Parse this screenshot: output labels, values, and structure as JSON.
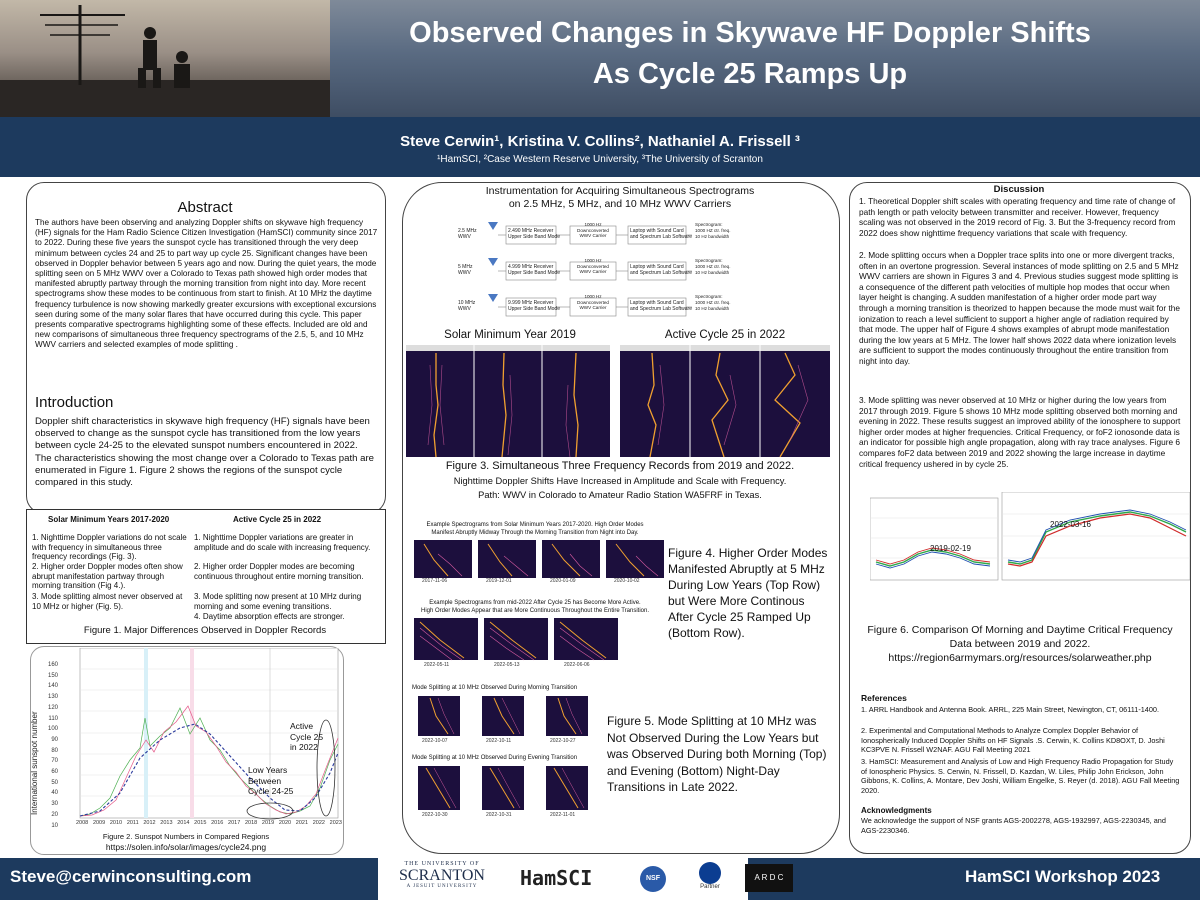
{
  "header": {
    "title_line1": "Observed Changes in Skywave HF Doppler Shifts",
    "title_line2": "As Cycle 25 Ramps Up",
    "authors": "Steve Cerwin¹, Kristina V. Collins², Nathaniel A. Frissell ³",
    "affiliations": "¹HamSCI, ²Case Western Reserve University, ³The University of Scranton"
  },
  "left": {
    "abstract_heading": "Abstract",
    "abstract_text": "The authors have been observing and analyzing Doppler shifts on skywave high frequency (HF) signals for the Ham Radio Science Citizen Investigation (HamSCI) community since 2017 to 2022. During these five years the sunspot cycle has transitioned through the very deep minimum between cycles 24 and 25 to part way up cycle 25. Significant changes have been observed in Doppler behavior between 5 years ago and now. During the quiet years, the mode splitting seen on 5 MHz WWV over a Colorado to Texas path showed high order modes that manifested abruptly partway through the morning transition from night into day. More recent spectrograms show these modes to be continuous from start to finish. At 10 MHz the daytime frequency turbulence is now showing markedly greater excursions with exceptional excursions seen during some of the many solar flares that have occurred during this cycle. This paper presents comparative spectrograms highlighting some of these effects. Included are old and new comparisons of simultaneous three frequency spectrograms of the 2.5, 5, and 10 MHz WWV carriers and selected examples of mode splitting .",
    "intro_heading": "Introduction",
    "intro_text": "Doppler shift characteristics in skywave high frequency (HF) signals have been observed to change as the sunspot cycle has transitioned from the low years between cycle 24-25 to the elevated sunspot numbers encountered in 2022.  The characteristics showing the most change over a Colorado to Texas path are enumerated in Figure 1.  Figure 2 shows the regions of the sunspot cycle compared in this study."
  },
  "fig1": {
    "col1_head": "Solar Minimum Years 2017-2020",
    "col2_head": "Active Cycle 25 in 2022",
    "col1_items": [
      "1. Nighttime Doppler variations do not scale with frequency in simultaneous three frequency recordings (Fig. 3).",
      "2. Higher order Doppler modes often show abrupt manifestation partway through morning transition (Fig 4.).",
      "3. Mode splitting almost never observed at 10 MHz or higher (Fig. 5)."
    ],
    "col2_items": [
      "1. Nighttime Doppler variations are greater in amplitude  and do scale with increasing frequency.",
      "2. Higher order Doppler modes are becoming continuous throughout entire morning transition.",
      "3. Mode splitting now present at 10 MHz during morning and some evening transitions.",
      "4. Daytime absorption effects are stronger."
    ],
    "caption": "Figure 1. Major Differences Observed in Doppler Records"
  },
  "fig2": {
    "caption": "Figure 2. Sunspot Numbers in Compared Regions",
    "url": "https://solen.info/solar/images/cycle24.png",
    "ylabel": "International sunspot number",
    "yticks": [
      "160",
      "150",
      "140",
      "130",
      "120",
      "110",
      "100",
      "90",
      "80",
      "70",
      "60",
      "50",
      "40",
      "30",
      "20",
      "10",
      "0"
    ],
    "xticks": [
      "2008",
      "2009",
      "2010",
      "2011",
      "2012",
      "2013",
      "2014",
      "2015",
      "2016",
      "2017",
      "2018",
      "2019",
      "2020",
      "2021",
      "2022",
      "2023"
    ],
    "annot_active": "Active\nCycle 25\nin 2022",
    "annot_low": "Low Years\nBetween\nCycle 24-25"
  },
  "middle": {
    "instr_title": "Instrumentation for Acquiring Simultaneous Spectrograms\non 2.5 MHz, 5 MHz, and 10 MHz WWV Carriers",
    "instr_rows": [
      {
        "freq": "2.5 MHz\nWWV",
        "rx": "2.490 MHz Receiver\nUpper Side Band Mode",
        "dc": "1000 Hz\nDownconverted\nWWV Carrier",
        "pc": "Laptop with Sound Card\nand Spectrum Lab Software",
        "sp": "Spectrogram:\n1000 HZ ctr. freq.\n10 Hz bandwidth"
      },
      {
        "freq": "5 MHz\nWWV",
        "rx": "4.999 MHz Receiver\nUpper Side Band Mode",
        "dc": "1000 Hz\nDownconverted\nWWV Carrier",
        "pc": "Laptop with Sound Card\nand Spectrum Lab Software",
        "sp": "Spectrogram:\n1000 HZ ctr. freq.\n10 Hz bandwidth"
      },
      {
        "freq": "10 MHz\nWWV",
        "rx": "9.999 MHz Receiver\nUpper Side Band Mode",
        "dc": "1000 Hz\nDownconverted\nWWV Carrier",
        "pc": "Laptop with Sound Card\nand Spectrum Lab Software",
        "sp": "Spectrogram:\n1000 HZ ctr. freq.\n10 Hz bandwidth"
      }
    ],
    "solarmin_title": "Solar Minimum Year 2019",
    "active_title": "Active Cycle 25 in 2022",
    "fig3_caption": "Figure 3. Simultaneous Three Frequency Records from 2019 and 2022.",
    "fig3_sub1": "Nighttime Doppler Shifts Have Increased in Amplitude and Scale with Frequency.",
    "fig3_sub2": "Path: WWV in Colorado to Amateur Radio Station WA5FRF in Texas.",
    "fig4_top_label": "Example Spectrograms from Solar Minimum Years 2017-2020. High Order Modes\nManifest Abruptly Midway Through the Morning Transition from Night into Day.",
    "fig4_top_dates": [
      "2017-11-06",
      "2019-12-01",
      "2020-01-09",
      "2020-10-02"
    ],
    "fig4_bot_label": "Example Spectrograms from mid-2022 After Cycle 25 has Become More Active.\nHigh Order Modes Appear that are More Continuous Throughout the Entire Transition.",
    "fig4_bot_dates": [
      "2022-05-11",
      "2022-05-13",
      "2022-06-06"
    ],
    "fig4_caption": "Figure 4. Higher Order Modes Manifested Abruptly at 5 MHz During Low Years (Top Row) but Were More Continous After Cycle 25 Ramped Up (Bottom Row).",
    "fig5_top_label": "Mode Splitting at 10 MHz Observed During Morning Transition",
    "fig5_top_dates": [
      "2022-10-07",
      "2022-10-11",
      "2022-10-27"
    ],
    "fig5_bot_label": "Mode Splitting at 10 MHz Observed During Evening Transition",
    "fig5_bot_dates": [
      "2022-10-30",
      "2022-10-31",
      "2022-11-01"
    ],
    "fig5_caption": "Figure 5. Mode Splitting at 10 MHz was Not Observed During the Low Years but was Observed During both Morning (Top) and Evening (Bottom) Night-Day Transitions  in Late 2022."
  },
  "right": {
    "heading": "Discussion",
    "p1": "1. Theoretical Doppler shift scales with operating frequency and time rate of change of path length or path velocity between transmitter and receiver.  However,  frequency scaling was not observed in the 2019 record of Fig. 3.  But the 3-frequency record from 2022 does show nighttime frequency variations that scale with frequency.",
    "p2": "2. Mode splitting occurs when a Doppler trace splits into one or more divergent tracks, often in an overtone progression. Several instances of mode splitting on 2.5 and 5 MHz WWV carriers are shown in Figures 3 and 4. Previous studies suggest mode splitting is a consequence of the different path velocities of multiple hop modes that occur when layer height is changing. A sudden manifestation of a higher order mode part way through a morning transition is theorized to happen because the mode must wait for the ionization to reach a level sufficient to support a higher angle of radiation required by that mode. The upper half of Figure 4 shows examples of abrupt mode manifestation during the low years at 5 MHz. The lower half shows 2022 data where ionization levels are sufficient to support the modes continuously throughout the entire transition from night into day.",
    "p3": "3. Mode splitting was never observed at 10 MHz or higher during the low years from 2017 through 2019. Figure 5 shows 10 MHz mode splitting observed both morning and evening in 2022. These results suggest an improved ability of the ionosphere to support higher order modes at higher frequencies. Critical Frequency, or foF2 ionosonde data is an indicator for possible high angle propagation, along with ray trace analyses. Figure 6 compares foF2 data between 2019 and 2022 showing the large increase in daytime critical frequency ushered in by cycle 25.",
    "fig6_date1": "2019-02-19",
    "fig6_date2": "2022-03-16",
    "fig6_caption": "Figure 6. Comparison Of Morning and Daytime Critical Frequency Data between 2019 and 2022.",
    "fig6_url": "https://region6armymars.org/resources/solarweather.php",
    "ref_heading": "References",
    "ref1": "1. ARRL Handbook and Antenna Book. ARRL, 225 Main Street, Newington, CT, 06111-1400.",
    "ref2": "2. Experimental and Computational Methods to Analyze Complex Doppler Behavior of Ionospherically Induced Doppler Shifts on HF Signals .S. Cerwin, K. Collins KD8OXT, D. Joshi KC3PVE N. Frissell W2NAF. AGU Fall Meeting 2021",
    "ref3": "3. HamSCI: Measurement and Analysis of Low and High Frequency Radio Propagation for Study of Ionospheric Physics. S. Cerwin, N. Frissell, D. Kazdan, W. Liles, Philip John Erickson, John Gibbons, K. Collins, A. Montare, Dev Joshi, William Engelke, S. Reyer (d. 2018). AGU Fall Meeting 2020.",
    "ack_heading": "Acknowledgments",
    "ack_text": "We acknowledge the support of NSF grants AGS-2002278, AGS-1932997, AGS-2230345, and AGS-2230346."
  },
  "footer": {
    "email": "Steve@cerwinconsulting.com",
    "workshop": "HamSCI Workshop 2023",
    "logo_scranton_top": "THE UNIVERSITY OF",
    "logo_scranton": "SCRANTON",
    "logo_scranton_sub": "A JESUIT UNIVERSITY",
    "logo_hamsci": "HamSCI",
    "logo_nsf": "NSF",
    "logo_nasa_sub": "Partner",
    "logo_ardc": "A R D C"
  }
}
